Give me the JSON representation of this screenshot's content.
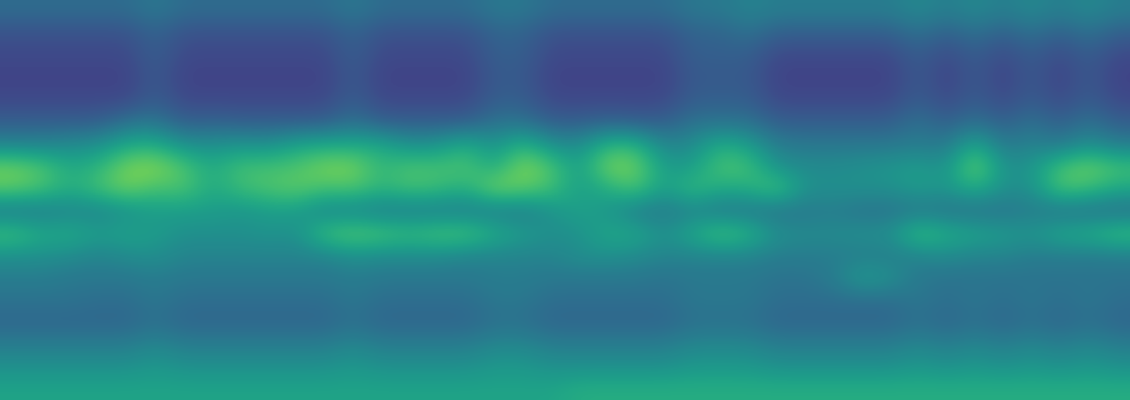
{
  "chart_data": {
    "type": "heatmap",
    "color": "viridis",
    "tick_labels": false,
    "zlim": [
      0,
      1
    ],
    "values": [
      [
        0.35,
        0.35,
        0.35,
        0.35,
        0.35,
        0.4,
        0.35,
        0.35,
        0.35,
        0.35,
        0.35,
        0.35,
        0.4,
        0.35,
        0.35,
        0.35,
        0.35,
        0.4,
        0.4,
        0.35,
        0.35,
        0.35,
        0.35,
        0.35,
        0.4,
        0.4,
        0.45,
        0.42,
        0.42,
        0.42,
        0.42,
        0.42,
        0.47,
        0.42,
        0.47,
        0.42,
        0.47,
        0.42,
        0.47,
        0.42
      ],
      [
        0.25,
        0.25,
        0.25,
        0.25,
        0.25,
        0.32,
        0.25,
        0.25,
        0.25,
        0.25,
        0.25,
        0.25,
        0.32,
        0.25,
        0.25,
        0.25,
        0.25,
        0.32,
        0.32,
        0.25,
        0.25,
        0.25,
        0.25,
        0.25,
        0.32,
        0.32,
        0.37,
        0.3,
        0.3,
        0.3,
        0.3,
        0.3,
        0.37,
        0.3,
        0.37,
        0.3,
        0.37,
        0.3,
        0.37,
        0.3
      ],
      [
        0.22,
        0.22,
        0.22,
        0.22,
        0.22,
        0.3,
        0.22,
        0.22,
        0.22,
        0.22,
        0.22,
        0.22,
        0.3,
        0.22,
        0.22,
        0.22,
        0.22,
        0.3,
        0.3,
        0.22,
        0.22,
        0.22,
        0.22,
        0.22,
        0.3,
        0.3,
        0.3,
        0.22,
        0.22,
        0.22,
        0.22,
        0.22,
        0.3,
        0.22,
        0.3,
        0.22,
        0.3,
        0.22,
        0.3,
        0.22
      ],
      [
        0.2,
        0.2,
        0.2,
        0.2,
        0.2,
        0.28,
        0.2,
        0.2,
        0.2,
        0.2,
        0.2,
        0.2,
        0.28,
        0.2,
        0.2,
        0.2,
        0.2,
        0.28,
        0.28,
        0.2,
        0.2,
        0.2,
        0.2,
        0.2,
        0.28,
        0.28,
        0.28,
        0.2,
        0.2,
        0.2,
        0.2,
        0.2,
        0.28,
        0.2,
        0.28,
        0.2,
        0.28,
        0.2,
        0.28,
        0.2
      ],
      [
        0.22,
        0.22,
        0.22,
        0.22,
        0.22,
        0.3,
        0.22,
        0.22,
        0.22,
        0.22,
        0.22,
        0.22,
        0.3,
        0.22,
        0.22,
        0.22,
        0.22,
        0.3,
        0.3,
        0.22,
        0.22,
        0.22,
        0.22,
        0.22,
        0.3,
        0.3,
        0.3,
        0.22,
        0.22,
        0.22,
        0.22,
        0.22,
        0.3,
        0.22,
        0.3,
        0.22,
        0.3,
        0.22,
        0.3,
        0.22
      ],
      [
        0.3,
        0.3,
        0.3,
        0.3,
        0.38,
        0.4,
        0.3,
        0.32,
        0.3,
        0.3,
        0.3,
        0.3,
        0.38,
        0.3,
        0.3,
        0.3,
        0.3,
        0.38,
        0.38,
        0.3,
        0.3,
        0.32,
        0.3,
        0.3,
        0.38,
        0.38,
        0.38,
        0.3,
        0.3,
        0.3,
        0.3,
        0.3,
        0.38,
        0.3,
        0.38,
        0.3,
        0.38,
        0.3,
        0.38,
        0.3
      ],
      [
        0.45,
        0.45,
        0.48,
        0.5,
        0.6,
        0.62,
        0.5,
        0.5,
        0.52,
        0.5,
        0.58,
        0.6,
        0.6,
        0.6,
        0.5,
        0.52,
        0.62,
        0.5,
        0.65,
        0.5,
        0.48,
        0.65,
        0.65,
        0.45,
        0.48,
        0.62,
        0.55,
        0.42,
        0.4,
        0.4,
        0.4,
        0.4,
        0.42,
        0.4,
        0.6,
        0.4,
        0.45,
        0.4,
        0.5,
        0.42
      ],
      [
        0.78,
        0.72,
        0.6,
        0.65,
        0.8,
        0.82,
        0.72,
        0.6,
        0.7,
        0.7,
        0.72,
        0.8,
        0.8,
        0.65,
        0.72,
        0.7,
        0.72,
        0.6,
        0.82,
        0.72,
        0.55,
        0.8,
        0.78,
        0.55,
        0.55,
        0.72,
        0.7,
        0.5,
        0.48,
        0.48,
        0.5,
        0.52,
        0.55,
        0.5,
        0.8,
        0.5,
        0.52,
        0.7,
        0.78,
        0.7
      ],
      [
        0.75,
        0.7,
        0.62,
        0.7,
        0.78,
        0.7,
        0.72,
        0.6,
        0.68,
        0.72,
        0.75,
        0.7,
        0.72,
        0.65,
        0.7,
        0.68,
        0.62,
        0.8,
        0.75,
        0.7,
        0.55,
        0.62,
        0.72,
        0.55,
        0.68,
        0.6,
        0.62,
        0.72,
        0.5,
        0.5,
        0.5,
        0.5,
        0.55,
        0.52,
        0.62,
        0.5,
        0.5,
        0.72,
        0.68,
        0.6
      ],
      [
        0.4,
        0.42,
        0.45,
        0.45,
        0.5,
        0.55,
        0.55,
        0.55,
        0.52,
        0.55,
        0.55,
        0.45,
        0.45,
        0.42,
        0.42,
        0.42,
        0.42,
        0.42,
        0.42,
        0.5,
        0.58,
        0.52,
        0.42,
        0.4,
        0.45,
        0.4,
        0.4,
        0.38,
        0.4,
        0.42,
        0.38,
        0.38,
        0.4,
        0.38,
        0.38,
        0.38,
        0.42,
        0.38,
        0.38,
        0.36
      ],
      [
        0.7,
        0.6,
        0.62,
        0.55,
        0.58,
        0.55,
        0.5,
        0.5,
        0.5,
        0.52,
        0.5,
        0.7,
        0.75,
        0.72,
        0.68,
        0.72,
        0.72,
        0.62,
        0.55,
        0.5,
        0.5,
        0.6,
        0.6,
        0.5,
        0.6,
        0.72,
        0.65,
        0.5,
        0.48,
        0.48,
        0.5,
        0.5,
        0.7,
        0.62,
        0.58,
        0.55,
        0.52,
        0.6,
        0.62,
        0.7
      ],
      [
        0.5,
        0.5,
        0.48,
        0.45,
        0.48,
        0.5,
        0.45,
        0.45,
        0.45,
        0.45,
        0.45,
        0.45,
        0.5,
        0.48,
        0.48,
        0.48,
        0.45,
        0.45,
        0.45,
        0.45,
        0.5,
        0.5,
        0.48,
        0.45,
        0.45,
        0.45,
        0.45,
        0.42,
        0.42,
        0.42,
        0.42,
        0.42,
        0.45,
        0.48,
        0.45,
        0.45,
        0.42,
        0.42,
        0.42,
        0.42
      ],
      [
        0.42,
        0.42,
        0.4,
        0.4,
        0.4,
        0.42,
        0.4,
        0.4,
        0.4,
        0.4,
        0.4,
        0.4,
        0.42,
        0.4,
        0.4,
        0.4,
        0.4,
        0.42,
        0.42,
        0.4,
        0.4,
        0.4,
        0.4,
        0.38,
        0.4,
        0.4,
        0.4,
        0.38,
        0.38,
        0.42,
        0.55,
        0.5,
        0.4,
        0.38,
        0.38,
        0.38,
        0.38,
        0.38,
        0.38,
        0.38
      ],
      [
        0.38,
        0.38,
        0.38,
        0.36,
        0.36,
        0.4,
        0.36,
        0.36,
        0.36,
        0.36,
        0.36,
        0.36,
        0.4,
        0.36,
        0.36,
        0.36,
        0.36,
        0.4,
        0.4,
        0.36,
        0.36,
        0.36,
        0.36,
        0.36,
        0.4,
        0.4,
        0.4,
        0.36,
        0.36,
        0.36,
        0.36,
        0.36,
        0.4,
        0.36,
        0.4,
        0.36,
        0.4,
        0.36,
        0.4,
        0.36
      ],
      [
        0.33,
        0.33,
        0.33,
        0.33,
        0.33,
        0.37,
        0.33,
        0.33,
        0.33,
        0.33,
        0.33,
        0.33,
        0.37,
        0.33,
        0.33,
        0.33,
        0.33,
        0.37,
        0.37,
        0.33,
        0.33,
        0.33,
        0.33,
        0.33,
        0.37,
        0.37,
        0.37,
        0.33,
        0.33,
        0.33,
        0.33,
        0.33,
        0.37,
        0.33,
        0.37,
        0.33,
        0.37,
        0.33,
        0.37,
        0.33
      ],
      [
        0.42,
        0.42,
        0.42,
        0.42,
        0.42,
        0.46,
        0.42,
        0.42,
        0.42,
        0.42,
        0.42,
        0.42,
        0.46,
        0.42,
        0.42,
        0.42,
        0.42,
        0.46,
        0.46,
        0.42,
        0.42,
        0.42,
        0.42,
        0.42,
        0.46,
        0.46,
        0.46,
        0.42,
        0.42,
        0.42,
        0.42,
        0.42,
        0.46,
        0.42,
        0.46,
        0.42,
        0.46,
        0.42,
        0.46,
        0.42
      ],
      [
        0.5,
        0.5,
        0.5,
        0.5,
        0.5,
        0.53,
        0.5,
        0.5,
        0.5,
        0.5,
        0.5,
        0.5,
        0.53,
        0.5,
        0.5,
        0.5,
        0.5,
        0.53,
        0.53,
        0.5,
        0.5,
        0.5,
        0.5,
        0.5,
        0.53,
        0.53,
        0.53,
        0.5,
        0.5,
        0.5,
        0.5,
        0.5,
        0.53,
        0.5,
        0.53,
        0.5,
        0.53,
        0.5,
        0.53,
        0.5
      ],
      [
        0.58,
        0.58,
        0.58,
        0.58,
        0.58,
        0.58,
        0.58,
        0.58,
        0.58,
        0.58,
        0.58,
        0.58,
        0.58,
        0.58,
        0.58,
        0.58,
        0.58,
        0.58,
        0.58,
        0.58,
        0.62,
        0.62,
        0.62,
        0.62,
        0.62,
        0.62,
        0.62,
        0.62,
        0.62,
        0.62,
        0.62,
        0.62,
        0.62,
        0.62,
        0.62,
        0.62,
        0.62,
        0.62,
        0.62,
        0.62
      ]
    ]
  }
}
